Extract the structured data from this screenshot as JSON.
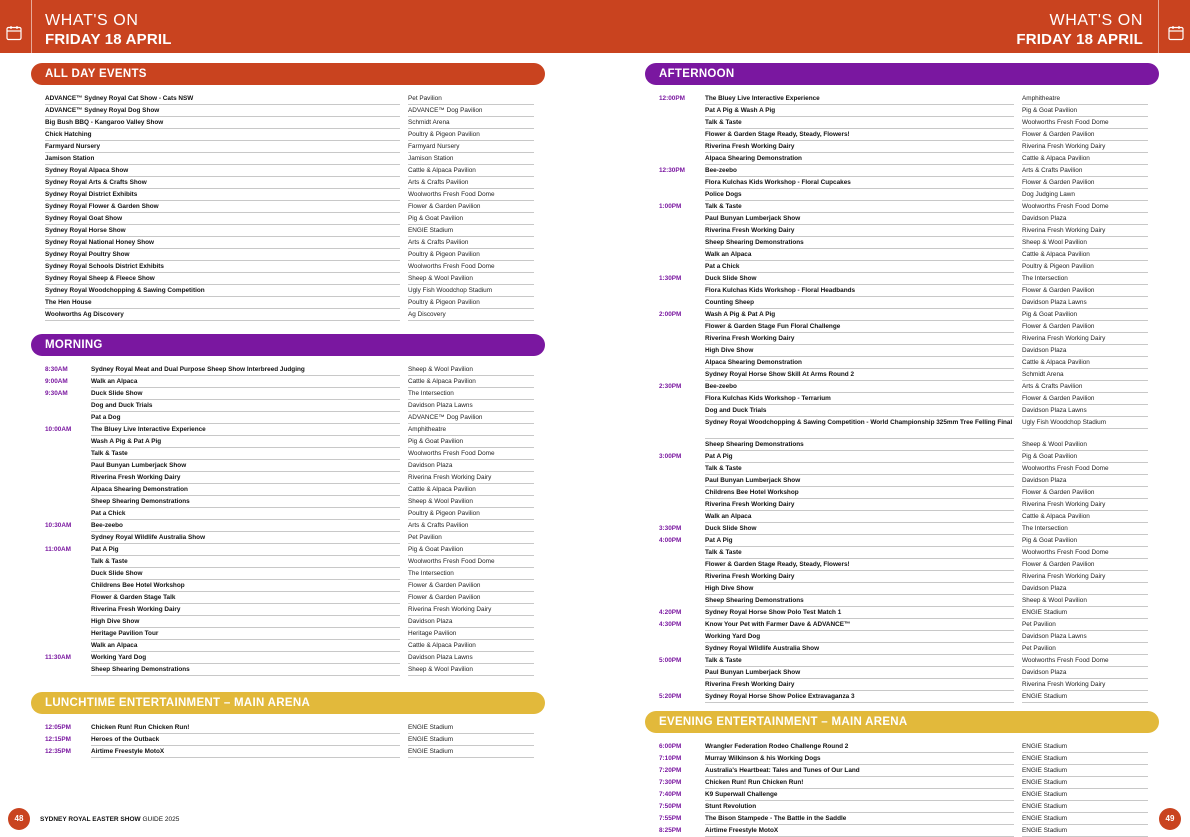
{
  "header": {
    "left_small": "WHAT'S ON",
    "left_big": "FRIDAY 18 APRIL",
    "right_small": "WHAT'S ON",
    "right_big": "FRIDAY 18 APRIL",
    "icon": "calendar-icon"
  },
  "colors": {
    "orange": "#c9431f",
    "purple": "#7a17a0",
    "yellow": "#e2b93b"
  },
  "all_day": {
    "title": "ALL DAY EVENTS",
    "rows": [
      {
        "event": "ADVANCE™ Sydney Royal Cat Show - Cats NSW",
        "location": "Pet Pavilion"
      },
      {
        "event": "ADVANCE™ Sydney Royal Dog Show",
        "location": "ADVANCE™ Dog Pavilion"
      },
      {
        "event": "Big Bush BBQ - Kangaroo Valley Show",
        "location": "Schmidt Arena"
      },
      {
        "event": "Chick Hatching",
        "location": "Poultry & Pigeon Pavilion"
      },
      {
        "event": "Farmyard Nursery",
        "location": "Farmyard Nursery"
      },
      {
        "event": "Jamison Station",
        "location": "Jamison Station"
      },
      {
        "event": "Sydney Royal Alpaca Show",
        "location": "Cattle & Alpaca Pavilion"
      },
      {
        "event": "Sydney Royal Arts & Crafts Show",
        "location": "Arts & Crafts Pavilion"
      },
      {
        "event": "Sydney Royal District Exhibits",
        "location": "Woolworths Fresh Food Dome"
      },
      {
        "event": "Sydney Royal Flower & Garden Show",
        "location": "Flower & Garden Pavilion"
      },
      {
        "event": "Sydney Royal Goat Show",
        "location": "Pig & Goat Pavilion"
      },
      {
        "event": "Sydney Royal Horse Show",
        "location": "ENGIE Stadium"
      },
      {
        "event": "Sydney Royal National Honey Show",
        "location": "Arts & Crafts Pavilion"
      },
      {
        "event": "Sydney Royal Poultry Show",
        "location": "Poultry & Pigeon Pavilion"
      },
      {
        "event": "Sydney Royal Schools District Exhibits",
        "location": "Woolworths Fresh Food Dome"
      },
      {
        "event": "Sydney Royal Sheep & Fleece Show",
        "location": "Sheep & Wool Pavilion"
      },
      {
        "event": "Sydney Royal Woodchopping & Sawing Competition",
        "location": "Ugly Fish Woodchop Stadium"
      },
      {
        "event": "The Hen House",
        "location": "Poultry & Pigeon Pavilion"
      },
      {
        "event": "Woolworths Ag Discovery",
        "location": "Ag Discovery"
      }
    ]
  },
  "morning": {
    "title": "MORNING",
    "rows": [
      {
        "time": "8:30AM",
        "event": "Sydney Royal Meat and Dual Purpose Sheep Show Interbreed Judging",
        "location": "Sheep & Wool Pavilion"
      },
      {
        "time": "9:00AM",
        "event": "Walk an Alpaca",
        "location": "Cattle & Alpaca Pavilion"
      },
      {
        "time": "9:30AM",
        "event": "Duck Slide Show",
        "location": "The Intersection"
      },
      {
        "time": "",
        "event": "Dog and Duck Trials",
        "location": "Davidson Plaza Lawns"
      },
      {
        "time": "",
        "event": "Pat a Dog",
        "location": "ADVANCE™ Dog Pavilion"
      },
      {
        "time": "10:00AM",
        "event": "The Bluey Live Interactive Experience",
        "location": "Amphitheatre"
      },
      {
        "time": "",
        "event": "Wash A Pig & Pat A Pig",
        "location": "Pig & Goat Pavilion"
      },
      {
        "time": "",
        "event": "Talk & Taste",
        "location": "Woolworths Fresh Food Dome"
      },
      {
        "time": "",
        "event": "Paul Bunyan Lumberjack Show",
        "location": "Davidson Plaza"
      },
      {
        "time": "",
        "event": "Riverina Fresh Working Dairy",
        "location": "Riverina Fresh Working Dairy"
      },
      {
        "time": "",
        "event": "Alpaca Shearing Demonstration",
        "location": "Cattle & Alpaca Pavilion"
      },
      {
        "time": "",
        "event": "Sheep Shearing Demonstrations",
        "location": "Sheep & Wool Pavilion"
      },
      {
        "time": "",
        "event": "Pat a Chick",
        "location": "Poultry & Pigeon Pavilion"
      },
      {
        "time": "10:30AM",
        "event": "Bee-zeebo",
        "location": "Arts & Crafts Pavilion"
      },
      {
        "time": "",
        "event": "Sydney Royal Wildlife Australia Show",
        "location": "Pet Pavilion"
      },
      {
        "time": "11:00AM",
        "event": "Pat A Pig",
        "location": "Pig & Goat Pavilion"
      },
      {
        "time": "",
        "event": "Talk & Taste",
        "location": "Woolworths Fresh Food Dome"
      },
      {
        "time": "",
        "event": "Duck Slide Show",
        "location": "The Intersection"
      },
      {
        "time": "",
        "event": "Childrens Bee Hotel Workshop",
        "location": "Flower & Garden Pavilion"
      },
      {
        "time": "",
        "event": "Flower & Garden Stage Talk",
        "location": "Flower & Garden Pavilion"
      },
      {
        "time": "",
        "event": "Riverina Fresh Working Dairy",
        "location": "Riverina Fresh Working Dairy"
      },
      {
        "time": "",
        "event": "High Dive Show",
        "location": "Davidson Plaza"
      },
      {
        "time": "",
        "event": "Heritage Pavilion Tour",
        "location": "Heritage Pavilion"
      },
      {
        "time": "",
        "event": "Walk an Alpaca",
        "location": "Cattle & Alpaca Pavilion"
      },
      {
        "time": "11:30AM",
        "event": "Working Yard Dog",
        "location": "Davidson Plaza Lawns"
      },
      {
        "time": "",
        "event": "Sheep Shearing Demonstrations",
        "location": "Sheep & Wool Pavilion"
      }
    ]
  },
  "lunchtime": {
    "title": "LUNCHTIME ENTERTAINMENT – MAIN ARENA",
    "rows": [
      {
        "time": "12:05PM",
        "event": "Chicken Run! Run Chicken Run!",
        "location": "ENGIE Stadium"
      },
      {
        "time": "12:15PM",
        "event": "Heroes of the Outback",
        "location": "ENGIE Stadium"
      },
      {
        "time": "12:35PM",
        "event": "Airtime Freestyle MotoX",
        "location": "ENGIE Stadium"
      }
    ]
  },
  "afternoon": {
    "title": "AFTERNOON",
    "rows": [
      {
        "time": "12:00PM",
        "event": "The Bluey Live Interactive Experience",
        "location": "Amphitheatre"
      },
      {
        "time": "",
        "event": "Pat A Pig & Wash A Pig",
        "location": "Pig & Goat Pavilion"
      },
      {
        "time": "",
        "event": "Talk & Taste",
        "location": "Woolworths Fresh Food Dome"
      },
      {
        "time": "",
        "event": "Flower & Garden Stage Ready, Steady, Flowers!",
        "location": "Flower & Garden Pavilion"
      },
      {
        "time": "",
        "event": "Riverina Fresh Working Dairy",
        "location": "Riverina Fresh Working Dairy"
      },
      {
        "time": "",
        "event": "Alpaca Shearing Demonstration",
        "location": "Cattle & Alpaca Pavilion"
      },
      {
        "time": "12:30PM",
        "event": "Bee-zeebo",
        "location": "Arts & Crafts Pavilion"
      },
      {
        "time": "",
        "event": "Flora Kulchas Kids Workshop - Floral Cupcakes",
        "location": "Flower & Garden Pavilion"
      },
      {
        "time": "",
        "event": "Police Dogs",
        "location": "Dog Judging Lawn"
      },
      {
        "time": "1:00PM",
        "event": "Talk & Taste",
        "location": "Woolworths Fresh Food Dome"
      },
      {
        "time": "",
        "event": "Paul Bunyan Lumberjack Show",
        "location": "Davidson Plaza"
      },
      {
        "time": "",
        "event": "Riverina Fresh Working Dairy",
        "location": "Riverina Fresh Working Dairy"
      },
      {
        "time": "",
        "event": "Sheep Shearing Demonstrations",
        "location": "Sheep & Wool Pavilion"
      },
      {
        "time": "",
        "event": "Walk an Alpaca",
        "location": "Cattle & Alpaca Pavilion"
      },
      {
        "time": "",
        "event": "Pat a Chick",
        "location": "Poultry & Pigeon Pavilion"
      },
      {
        "time": "1:30PM",
        "event": "Duck Slide Show",
        "location": "The Intersection"
      },
      {
        "time": "",
        "event": "Flora Kulchas Kids Workshop - Floral Headbands",
        "location": "Flower & Garden Pavilion"
      },
      {
        "time": "",
        "event": "Counting Sheep",
        "location": "Davidson Plaza Lawns"
      },
      {
        "time": "2:00PM",
        "event": "Wash A Pig & Pat A Pig",
        "location": "Pig & Goat Pavilion"
      },
      {
        "time": "",
        "event": "Flower & Garden Stage Fun Floral Challenge",
        "location": "Flower & Garden Pavilion"
      },
      {
        "time": "",
        "event": "Riverina Fresh Working Dairy",
        "location": "Riverina Fresh Working Dairy"
      },
      {
        "time": "",
        "event": "High Dive Show",
        "location": "Davidson Plaza"
      },
      {
        "time": "",
        "event": "Alpaca Shearing Demonstration",
        "location": "Cattle & Alpaca Pavilion"
      },
      {
        "time": "",
        "event": "Sydney Royal Horse Show Skill At Arms Round 2",
        "location": "Schmidt Arena"
      },
      {
        "time": "2:30PM",
        "event": "Bee-zeebo",
        "location": "Arts & Crafts Pavilion"
      },
      {
        "time": "",
        "event": "Flora Kulchas Kids Workshop - Terrarium",
        "location": "Flower & Garden Pavilion"
      },
      {
        "time": "",
        "event": "Dog and Duck Trials",
        "location": "Davidson Plaza Lawns"
      },
      {
        "time": "",
        "event": "Sydney Royal Woodchopping & Sawing Competition - World Championship 325mm Tree Felling Final",
        "location": "Ugly Fish Woodchop Stadium",
        "tall": true
      },
      {
        "time": "",
        "event": "Sheep Shearing Demonstrations",
        "location": "Sheep & Wool Pavilion"
      },
      {
        "time": "3:00PM",
        "event": "Pat A Pig",
        "location": "Pig & Goat Pavilion"
      },
      {
        "time": "",
        "event": "Talk & Taste",
        "location": "Woolworths Fresh Food Dome"
      },
      {
        "time": "",
        "event": "Paul Bunyan Lumberjack Show",
        "location": "Davidson Plaza"
      },
      {
        "time": "",
        "event": "Childrens Bee Hotel Workshop",
        "location": "Flower & Garden Pavilion"
      },
      {
        "time": "",
        "event": "Riverina Fresh Working Dairy",
        "location": "Riverina Fresh Working Dairy"
      },
      {
        "time": "",
        "event": "Walk an Alpaca",
        "location": "Cattle & Alpaca Pavilion"
      },
      {
        "time": "3:30PM",
        "event": "Duck Slide Show",
        "location": "The Intersection"
      },
      {
        "time": "4:00PM",
        "event": "Pat A Pig",
        "location": "Pig & Goat Pavilion"
      },
      {
        "time": "",
        "event": "Talk & Taste",
        "location": "Woolworths Fresh Food Dome"
      },
      {
        "time": "",
        "event": "Flower & Garden Stage Ready, Steady, Flowers!",
        "location": "Flower & Garden Pavilion"
      },
      {
        "time": "",
        "event": "Riverina Fresh Working Dairy",
        "location": "Riverina Fresh Working Dairy"
      },
      {
        "time": "",
        "event": "High Dive Show",
        "location": "Davidson Plaza"
      },
      {
        "time": "",
        "event": "Sheep Shearing Demonstrations",
        "location": "Sheep & Wool Pavilion"
      },
      {
        "time": "4:20PM",
        "event": "Sydney Royal Horse Show Polo Test Match 1",
        "location": "ENGIE Stadium"
      },
      {
        "time": "4:30PM",
        "event": "Know Your Pet with Farmer Dave & ADVANCE™",
        "location": "Pet Pavilion"
      },
      {
        "time": "",
        "event": "Working Yard Dog",
        "location": "Davidson Plaza Lawns"
      },
      {
        "time": "",
        "event": "Sydney Royal Wildlife Australia Show",
        "location": "Pet Pavilion"
      },
      {
        "time": "5:00PM",
        "event": "Talk & Taste",
        "location": "Woolworths Fresh Food Dome"
      },
      {
        "time": "",
        "event": "Paul Bunyan Lumberjack Show",
        "location": "Davidson Plaza"
      },
      {
        "time": "",
        "event": "Riverina Fresh Working Dairy",
        "location": "Riverina Fresh Working Dairy"
      },
      {
        "time": "5:20PM",
        "event": "Sydney Royal Horse Show Police Extravaganza 3",
        "location": "ENGIE Stadium"
      }
    ]
  },
  "evening": {
    "title": "EVENING ENTERTAINMENT – MAIN ARENA",
    "rows": [
      {
        "time": "6:00PM",
        "event": "Wrangler Federation Rodeo Challenge Round 2",
        "location": "ENGIE Stadium"
      },
      {
        "time": "7:10PM",
        "event": "Murray Wilkinson & his Working Dogs",
        "location": "ENGIE Stadium"
      },
      {
        "time": "7:20PM",
        "event": "Australia's Heartbeat: Tales and Tunes of Our Land",
        "location": "ENGIE Stadium"
      },
      {
        "time": "7:30PM",
        "event": "Chicken Run! Run Chicken Run!",
        "location": "ENGIE Stadium"
      },
      {
        "time": "7:40PM",
        "event": "K9 Superwall Challenge",
        "location": "ENGIE Stadium"
      },
      {
        "time": "7:50PM",
        "event": "Stunt Revolution",
        "location": "ENGIE Stadium"
      },
      {
        "time": "7:55PM",
        "event": "The Bison Stampede - The Battle in the Saddle",
        "location": "ENGIE Stadium"
      },
      {
        "time": "8:25PM",
        "event": "Airtime Freestyle MotoX",
        "location": "ENGIE Stadium"
      },
      {
        "time": "8:50PM",
        "event": "Fireworks Finale",
        "location": "ENGIE Stadium"
      }
    ]
  },
  "footer": {
    "left_page_number": "48",
    "brand": "SYDNEY ROYAL EASTER SHOW",
    "guide": " GUIDE 2025",
    "right_page_number": "49"
  }
}
